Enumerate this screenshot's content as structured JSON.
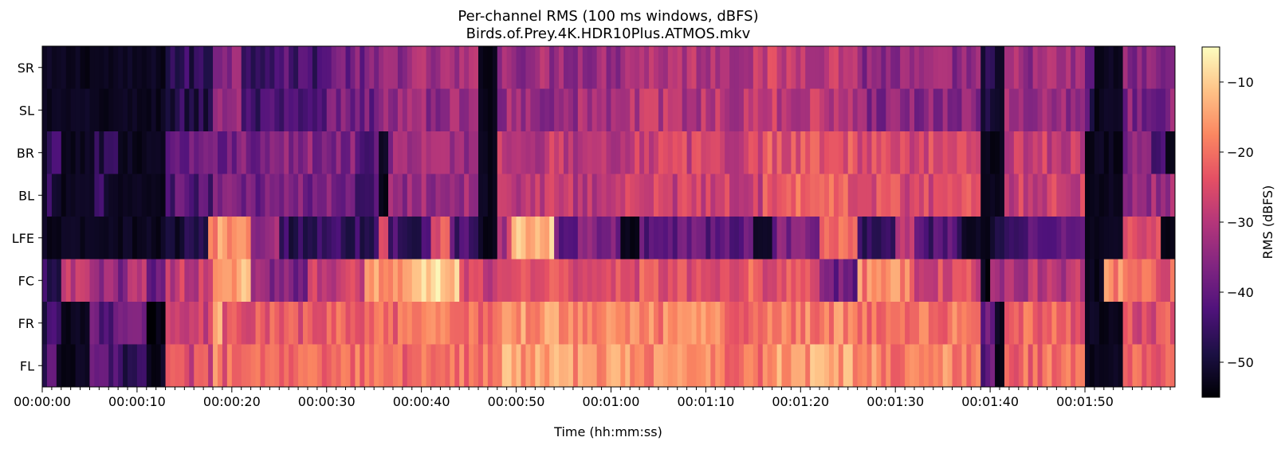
{
  "chart_data": {
    "type": "heatmap",
    "title": "Per-channel RMS (100 ms windows, dBFS)",
    "subtitle": "Birds.of.Prey.4K.HDR10Plus.ATMOS.mkv",
    "xlabel": "Time (hh:mm:ss)",
    "ylabel": "",
    "xlim": [
      0,
      119.5
    ],
    "x_ticks": [
      0,
      10,
      20,
      30,
      40,
      50,
      60,
      70,
      80,
      90,
      100,
      110
    ],
    "x_tick_labels": [
      "00:00:00",
      "00:00:10",
      "00:00:20",
      "00:00:30",
      "00:00:40",
      "00:00:50",
      "00:01:00",
      "00:01:10",
      "00:01:20",
      "00:01:30",
      "00:01:40",
      "00:01:50"
    ],
    "rows": [
      "SR",
      "SL",
      "BR",
      "BL",
      "LFE",
      "FC",
      "FR",
      "FL"
    ],
    "colorbar": {
      "label": "RMS (dBFS)",
      "range": [
        -55,
        -5
      ],
      "ticks": [
        -10,
        -20,
        -30,
        -40,
        -50
      ],
      "tick_labels": [
        "−10",
        "−20",
        "−30",
        "−40",
        "−50"
      ],
      "colormap": "magma"
    },
    "segments_note": "Approximate mean RMS (dBFS) per channel over time spans, read from the heatmap colour.",
    "segments": {
      "SR": [
        [
          0,
          13,
          -54
        ],
        [
          13,
          18,
          -47
        ],
        [
          18,
          21,
          -34
        ],
        [
          21,
          30,
          -43
        ],
        [
          30,
          36,
          -38
        ],
        [
          36,
          46,
          -33
        ],
        [
          46,
          48,
          -54
        ],
        [
          48,
          61,
          -33
        ],
        [
          61,
          76,
          -30
        ],
        [
          76,
          86,
          -28
        ],
        [
          86,
          99,
          -35
        ],
        [
          99,
          100.5,
          -50
        ],
        [
          100.5,
          101.5,
          -54
        ],
        [
          101.5,
          110,
          -33
        ],
        [
          110,
          111,
          -44
        ],
        [
          111,
          114,
          -54
        ],
        [
          114,
          119.5,
          -36
        ]
      ],
      "SL": [
        [
          0,
          13,
          -54
        ],
        [
          13,
          18,
          -48
        ],
        [
          18,
          21,
          -33
        ],
        [
          21,
          30,
          -45
        ],
        [
          30,
          36,
          -38
        ],
        [
          36,
          46,
          -34
        ],
        [
          46,
          48,
          -54
        ],
        [
          48,
          61,
          -33
        ],
        [
          61,
          76,
          -30
        ],
        [
          76,
          86,
          -29
        ],
        [
          86,
          99,
          -35
        ],
        [
          99,
          100.5,
          -50
        ],
        [
          100.5,
          101.5,
          -54
        ],
        [
          101.5,
          110,
          -33
        ],
        [
          110,
          111,
          -44
        ],
        [
          111,
          114,
          -54
        ],
        [
          114,
          119.5,
          -36
        ]
      ],
      "BR": [
        [
          0,
          0.5,
          -54
        ],
        [
          0.5,
          2,
          -47
        ],
        [
          2,
          5.5,
          -54
        ],
        [
          5.5,
          8,
          -46
        ],
        [
          8,
          13,
          -54
        ],
        [
          13,
          18,
          -41
        ],
        [
          18,
          25,
          -37
        ],
        [
          25,
          33,
          -36
        ],
        [
          33,
          35.5,
          -40
        ],
        [
          35.5,
          36.5,
          -54
        ],
        [
          36.5,
          46,
          -33
        ],
        [
          46,
          48,
          -54
        ],
        [
          48,
          61,
          -29
        ],
        [
          61,
          76,
          -27
        ],
        [
          76,
          86,
          -23
        ],
        [
          86,
          99,
          -26
        ],
        [
          99,
          101.5,
          -54
        ],
        [
          101.5,
          110,
          -28
        ],
        [
          110,
          114,
          -54
        ],
        [
          114,
          117,
          -36
        ],
        [
          117,
          118.5,
          -45
        ],
        [
          118.5,
          119.5,
          -54
        ]
      ],
      "BL": [
        [
          0,
          0.5,
          -54
        ],
        [
          0.5,
          2,
          -47
        ],
        [
          2,
          5.5,
          -54
        ],
        [
          5.5,
          7,
          -46
        ],
        [
          7,
          13,
          -54
        ],
        [
          13,
          18,
          -42
        ],
        [
          18,
          25,
          -38
        ],
        [
          25,
          33,
          -38
        ],
        [
          33,
          35.5,
          -42
        ],
        [
          35.5,
          36.5,
          -54
        ],
        [
          36.5,
          46,
          -33
        ],
        [
          46,
          48,
          -54
        ],
        [
          48,
          61,
          -29
        ],
        [
          61,
          76,
          -27
        ],
        [
          76,
          86,
          -22
        ],
        [
          86,
          99,
          -25
        ],
        [
          99,
          101.5,
          -54
        ],
        [
          101.5,
          110,
          -27
        ],
        [
          110,
          114,
          -54
        ],
        [
          114,
          119.5,
          -33
        ]
      ],
      "LFE": [
        [
          0,
          13,
          -54
        ],
        [
          13,
          17.5,
          -50
        ],
        [
          17.5,
          22,
          -16
        ],
        [
          22,
          25,
          -32
        ],
        [
          25,
          35.5,
          -46
        ],
        [
          35.5,
          36.5,
          -22
        ],
        [
          36.5,
          41,
          -45
        ],
        [
          41,
          43,
          -24
        ],
        [
          43,
          46,
          -42
        ],
        [
          46,
          48,
          -54
        ],
        [
          48,
          49.5,
          -30
        ],
        [
          49.5,
          54,
          -12
        ],
        [
          54,
          61,
          -38
        ],
        [
          61,
          63,
          -54
        ],
        [
          63,
          75,
          -40
        ],
        [
          75,
          77,
          -54
        ],
        [
          77,
          82,
          -38
        ],
        [
          82,
          86,
          -20
        ],
        [
          86,
          90,
          -46
        ],
        [
          90,
          92,
          -30
        ],
        [
          92,
          97,
          -43
        ],
        [
          97,
          100,
          -54
        ],
        [
          100,
          103,
          -48
        ],
        [
          103,
          110,
          -40
        ],
        [
          110,
          114,
          -54
        ],
        [
          114,
          118,
          -24
        ],
        [
          118,
          119.5,
          -54
        ]
      ],
      "FC": [
        [
          0,
          2,
          -48
        ],
        [
          2,
          5,
          -30
        ],
        [
          5,
          9,
          -35
        ],
        [
          9,
          11,
          -28
        ],
        [
          11,
          13,
          -40
        ],
        [
          13,
          18,
          -28
        ],
        [
          18,
          22,
          -14
        ],
        [
          22,
          28,
          -36
        ],
        [
          28,
          34,
          -27
        ],
        [
          34,
          40,
          -15
        ],
        [
          40,
          44,
          -10
        ],
        [
          44,
          48,
          -28
        ],
        [
          48,
          62,
          -24
        ],
        [
          62,
          70,
          -24
        ],
        [
          70,
          76,
          -23
        ],
        [
          76,
          82,
          -24
        ],
        [
          82,
          86,
          -38
        ],
        [
          86,
          92,
          -18
        ],
        [
          92,
          99,
          -26
        ],
        [
          99,
          100,
          -50
        ],
        [
          100,
          102,
          -34
        ],
        [
          102,
          110,
          -30
        ],
        [
          110,
          112,
          -54
        ],
        [
          112,
          116,
          -18
        ],
        [
          116,
          119.5,
          -22
        ]
      ],
      "FR": [
        [
          0,
          2,
          -45
        ],
        [
          2,
          5,
          -54
        ],
        [
          5,
          11,
          -40
        ],
        [
          11,
          13,
          -52
        ],
        [
          13,
          18,
          -28
        ],
        [
          18,
          19,
          -14
        ],
        [
          19,
          30,
          -24
        ],
        [
          30,
          40,
          -22
        ],
        [
          40,
          48,
          -20
        ],
        [
          48,
          56,
          -16
        ],
        [
          56,
          62,
          -16
        ],
        [
          62,
          72,
          -18
        ],
        [
          72,
          76,
          -20
        ],
        [
          76,
          86,
          -18
        ],
        [
          86,
          99,
          -20
        ],
        [
          99,
          100.5,
          -40
        ],
        [
          100.5,
          101.5,
          -54
        ],
        [
          101.5,
          110,
          -22
        ],
        [
          110,
          114,
          -54
        ],
        [
          114,
          119.5,
          -24
        ]
      ],
      "FL": [
        [
          0,
          1.5,
          -44
        ],
        [
          1.5,
          5,
          -54
        ],
        [
          5,
          8,
          -42
        ],
        [
          8,
          11,
          -46
        ],
        [
          11,
          13,
          -54
        ],
        [
          13,
          18,
          -26
        ],
        [
          18,
          19,
          -16
        ],
        [
          19,
          30,
          -22
        ],
        [
          30,
          40,
          -21
        ],
        [
          40,
          48,
          -19
        ],
        [
          48,
          56,
          -15
        ],
        [
          56,
          62,
          -16
        ],
        [
          62,
          72,
          -17
        ],
        [
          72,
          76,
          -19
        ],
        [
          76,
          86,
          -15
        ],
        [
          86,
          99,
          -18
        ],
        [
          99,
          100.5,
          -42
        ],
        [
          100.5,
          101.5,
          -54
        ],
        [
          101.5,
          110,
          -21
        ],
        [
          110,
          114,
          -54
        ],
        [
          114,
          119.5,
          -23
        ]
      ]
    }
  }
}
